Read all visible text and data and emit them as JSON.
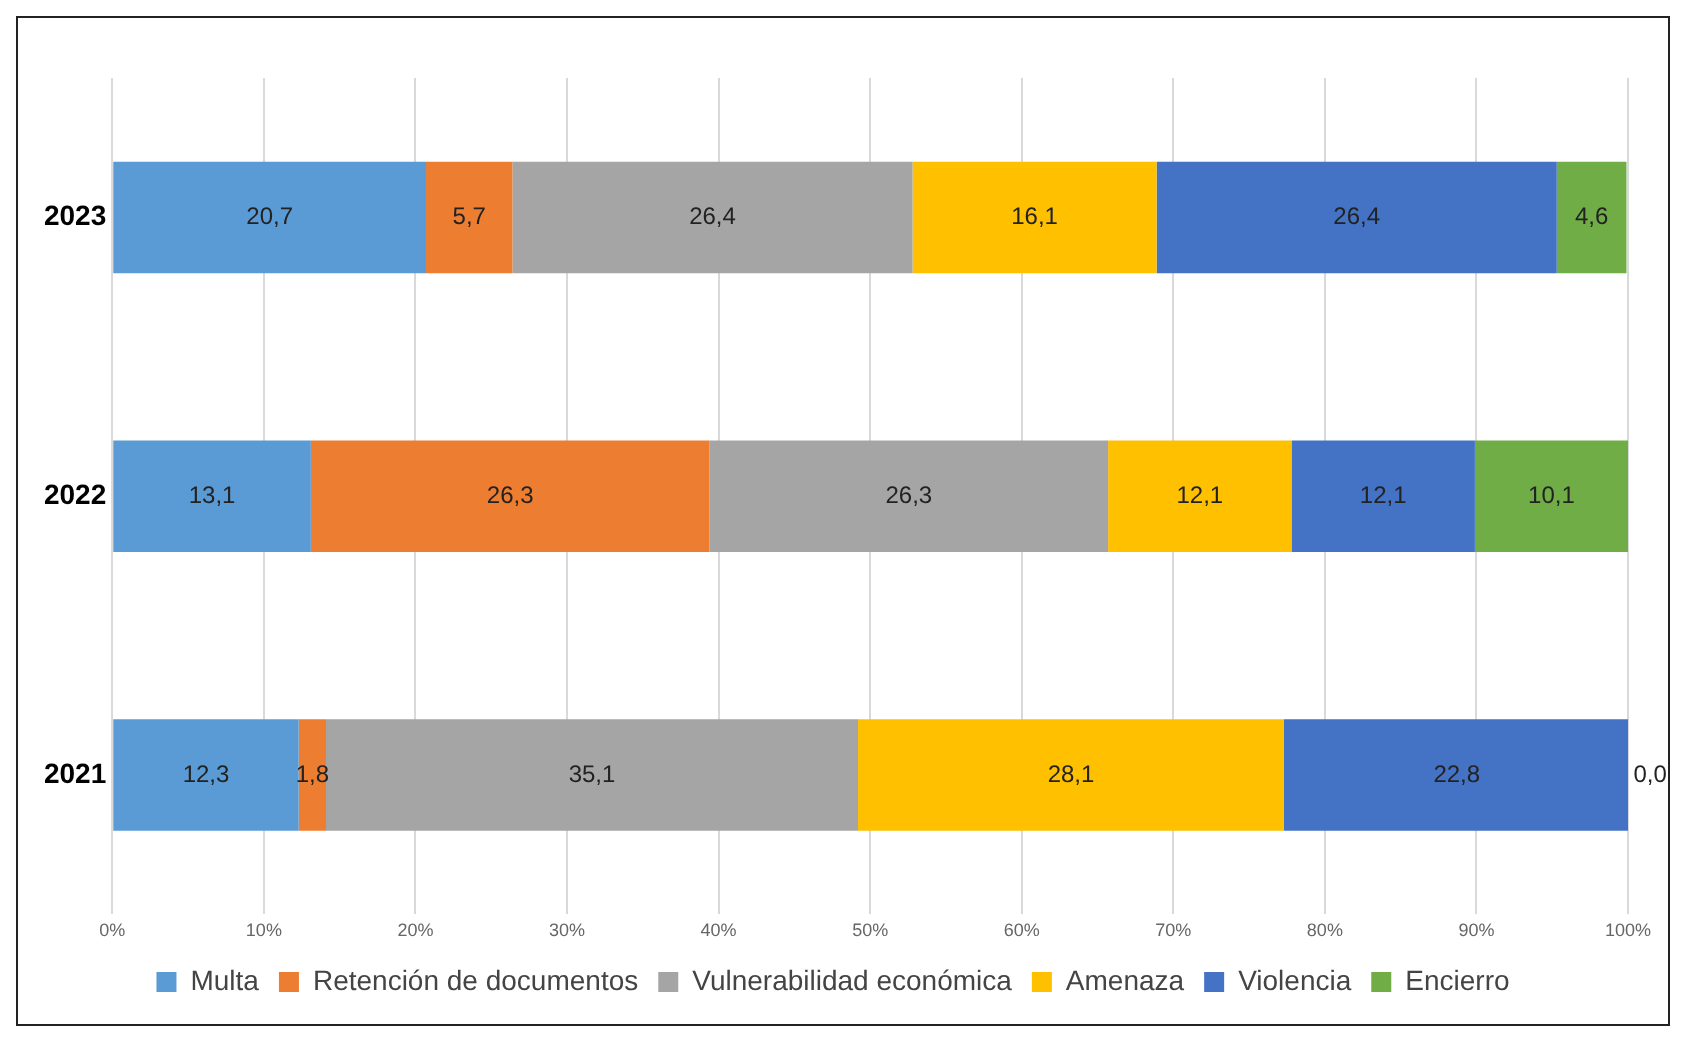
{
  "chart_data": {
    "type": "bar",
    "orientation": "horizontal",
    "stacked": true,
    "categories": [
      "2023",
      "2022",
      "2021"
    ],
    "series": [
      {
        "name": "Multa",
        "color": "#5b9bd5",
        "values": [
          20.7,
          13.1,
          12.3
        ],
        "value_labels": [
          "20,7",
          "13,1",
          "12,3"
        ]
      },
      {
        "name": "Retención de documentos",
        "color": "#ed7d31",
        "values": [
          5.7,
          26.3,
          1.8
        ],
        "value_labels": [
          "5,7",
          "26,3",
          "1,8"
        ]
      },
      {
        "name": "Vulnerabilidad económica",
        "color": "#a5a5a5",
        "values": [
          26.4,
          26.3,
          35.1
        ],
        "value_labels": [
          "26,4",
          "26,3",
          "35,1"
        ]
      },
      {
        "name": "Amenaza",
        "color": "#ffc000",
        "values": [
          16.1,
          12.1,
          28.1
        ],
        "value_labels": [
          "16,1",
          "12,1",
          "28,1"
        ]
      },
      {
        "name": "Violencia",
        "color": "#4472c4",
        "values": [
          26.4,
          12.1,
          22.8
        ],
        "value_labels": [
          "26,4",
          "12,1",
          "22,8"
        ]
      },
      {
        "name": "Encierro",
        "color": "#70ad47",
        "values": [
          4.6,
          10.1,
          0.0
        ],
        "value_labels": [
          "4,6",
          "10,1",
          "0,0"
        ]
      }
    ],
    "xlim": [
      0,
      100
    ],
    "xticks": [
      {
        "value": 0,
        "label": "0%"
      },
      {
        "value": 10,
        "label": "10%"
      },
      {
        "value": 20,
        "label": "20%"
      },
      {
        "value": 30,
        "label": "30%"
      },
      {
        "value": 40,
        "label": "40%"
      },
      {
        "value": 50,
        "label": "50%"
      },
      {
        "value": 60,
        "label": "60%"
      },
      {
        "value": 70,
        "label": "70%"
      },
      {
        "value": 80,
        "label": "80%"
      },
      {
        "value": 90,
        "label": "90%"
      },
      {
        "value": 100,
        "label": "100%"
      }
    ],
    "grid": "x",
    "legend": "bottom"
  }
}
